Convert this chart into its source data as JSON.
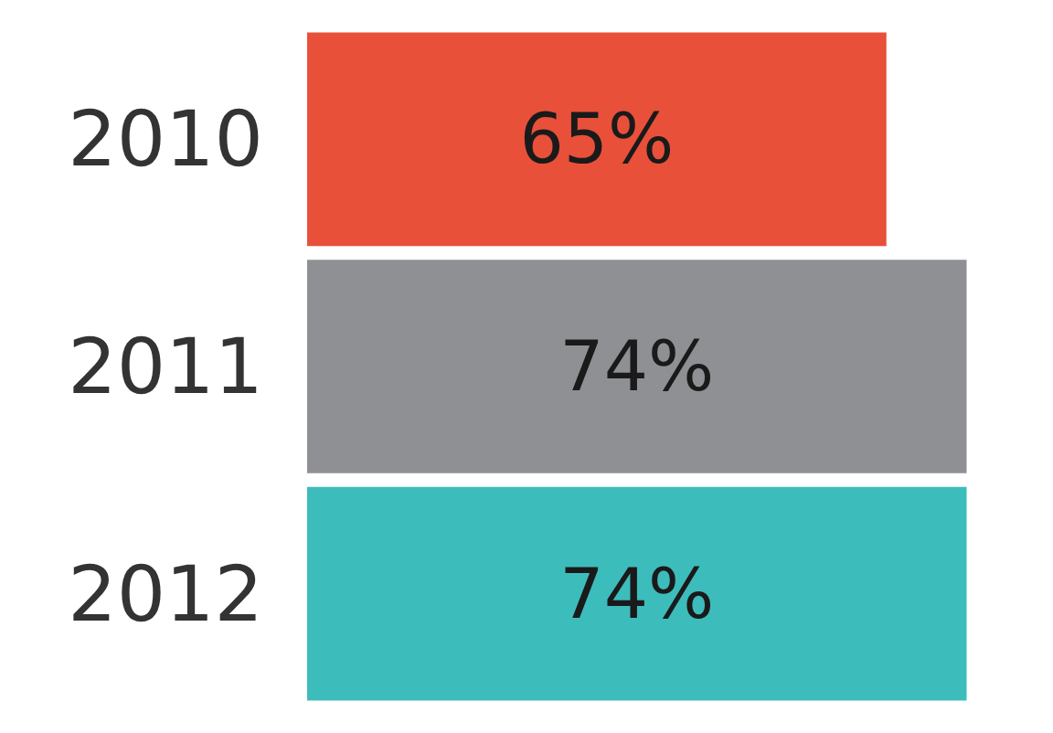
{
  "chart_data": {
    "type": "bar",
    "orientation": "horizontal",
    "categories": [
      "2010",
      "2011",
      "2012"
    ],
    "values": [
      65,
      74,
      74
    ],
    "colors": [
      "#e8503a",
      "#8f9093",
      "#3dbcbc"
    ],
    "value_labels": [
      "65%",
      "74%",
      "74%"
    ]
  }
}
